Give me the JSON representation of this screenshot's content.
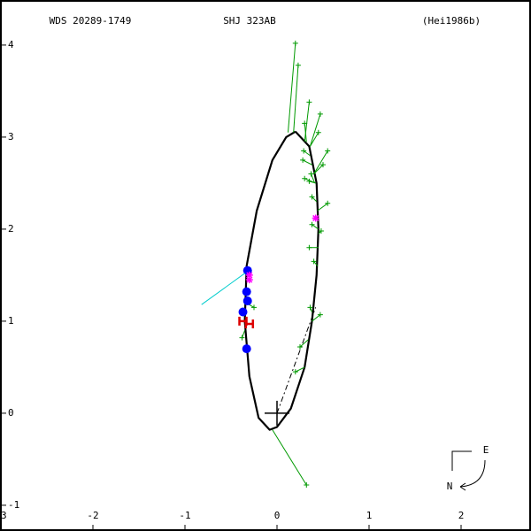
{
  "chart_data": {
    "type": "orbit",
    "title_left": "WDS 20289-1749",
    "title_center": "SHJ 323AB",
    "title_right": "(Hei1986b)",
    "xlim": [
      -3,
      2.75
    ],
    "ylim": [
      -1.27,
      4.48
    ],
    "xticks": [
      -3,
      -2,
      -1,
      0,
      1,
      2
    ],
    "yticks": [
      -1,
      0,
      1,
      2,
      3,
      4
    ],
    "compass_e": "E",
    "compass_n": "N",
    "orbit": {
      "color": "#000000",
      "x": [
        0.2,
        0.35,
        0.43,
        0.45,
        0.43,
        0.38,
        0.3,
        0.15,
        0.0,
        -0.08,
        -0.2,
        -0.3,
        -0.35,
        -0.33,
        -0.22,
        -0.05,
        0.1,
        0.2
      ],
      "y": [
        3.06,
        2.9,
        2.5,
        2.0,
        1.5,
        1.0,
        0.5,
        0.05,
        -0.15,
        -0.18,
        -0.05,
        0.4,
        1.0,
        1.6,
        2.2,
        2.75,
        3.0,
        3.06
      ]
    },
    "node_line": {
      "color": "#000000",
      "x": [
        0,
        0.42
      ],
      "y": [
        0,
        1.15
      ]
    },
    "primary": {
      "x": 0,
      "y": 0
    },
    "series": [
      {
        "marker": "plus",
        "color": "#009900",
        "x": [
          0.2,
          0.23,
          0.35,
          0.47,
          0.3,
          0.45,
          0.29,
          0.28,
          0.55,
          0.3,
          0.35,
          0.5,
          0.37,
          0.55,
          0.38,
          0.38,
          0.48,
          0.35,
          0.4,
          0.47,
          0.36,
          -0.38,
          0.2,
          -0.25,
          0.32,
          0.25
        ],
        "y": [
          4.02,
          3.78,
          3.38,
          3.25,
          3.15,
          3.05,
          2.85,
          2.75,
          2.85,
          2.55,
          2.52,
          2.7,
          2.6,
          2.28,
          2.35,
          2.05,
          1.98,
          1.8,
          1.65,
          1.07,
          1.15,
          0.82,
          0.45,
          1.15,
          -0.78,
          0.72
        ],
        "px": [
          0.12,
          0.18,
          0.3,
          0.36,
          0.32,
          0.36,
          0.36,
          0.38,
          0.4,
          0.42,
          0.42,
          0.4,
          0.41,
          0.44,
          0.43,
          0.45,
          0.45,
          0.45,
          0.44,
          0.38,
          0.38,
          -0.35,
          0.3,
          -0.34,
          -0.05,
          0.34
        ],
        "py": [
          3.05,
          3.05,
          2.95,
          2.9,
          2.95,
          2.9,
          2.8,
          2.7,
          2.6,
          2.5,
          2.5,
          2.6,
          2.5,
          2.2,
          2.3,
          2.0,
          1.95,
          1.8,
          1.6,
          1.0,
          1.1,
          0.9,
          0.5,
          1.2,
          -0.18,
          0.8
        ]
      },
      {
        "marker": "dot",
        "color": "#0000ff",
        "x": [
          -0.32,
          -0.33,
          -0.32,
          -0.37,
          -0.33
        ],
        "y": [
          1.55,
          1.32,
          1.22,
          1.1,
          0.7
        ]
      },
      {
        "marker": "star",
        "color": "#ff00ff",
        "x": [
          -0.3,
          -0.3,
          0.42
        ],
        "y": [
          1.5,
          1.45,
          2.12
        ]
      },
      {
        "marker": "H",
        "color": "#dd0000",
        "x": [
          -0.37,
          -0.3
        ],
        "y": [
          1.0,
          0.97
        ]
      },
      {
        "marker": "line",
        "color": "#00cccc",
        "x": [
          -0.82,
          -0.35
        ],
        "y": [
          1.18,
          1.52
        ]
      }
    ]
  }
}
